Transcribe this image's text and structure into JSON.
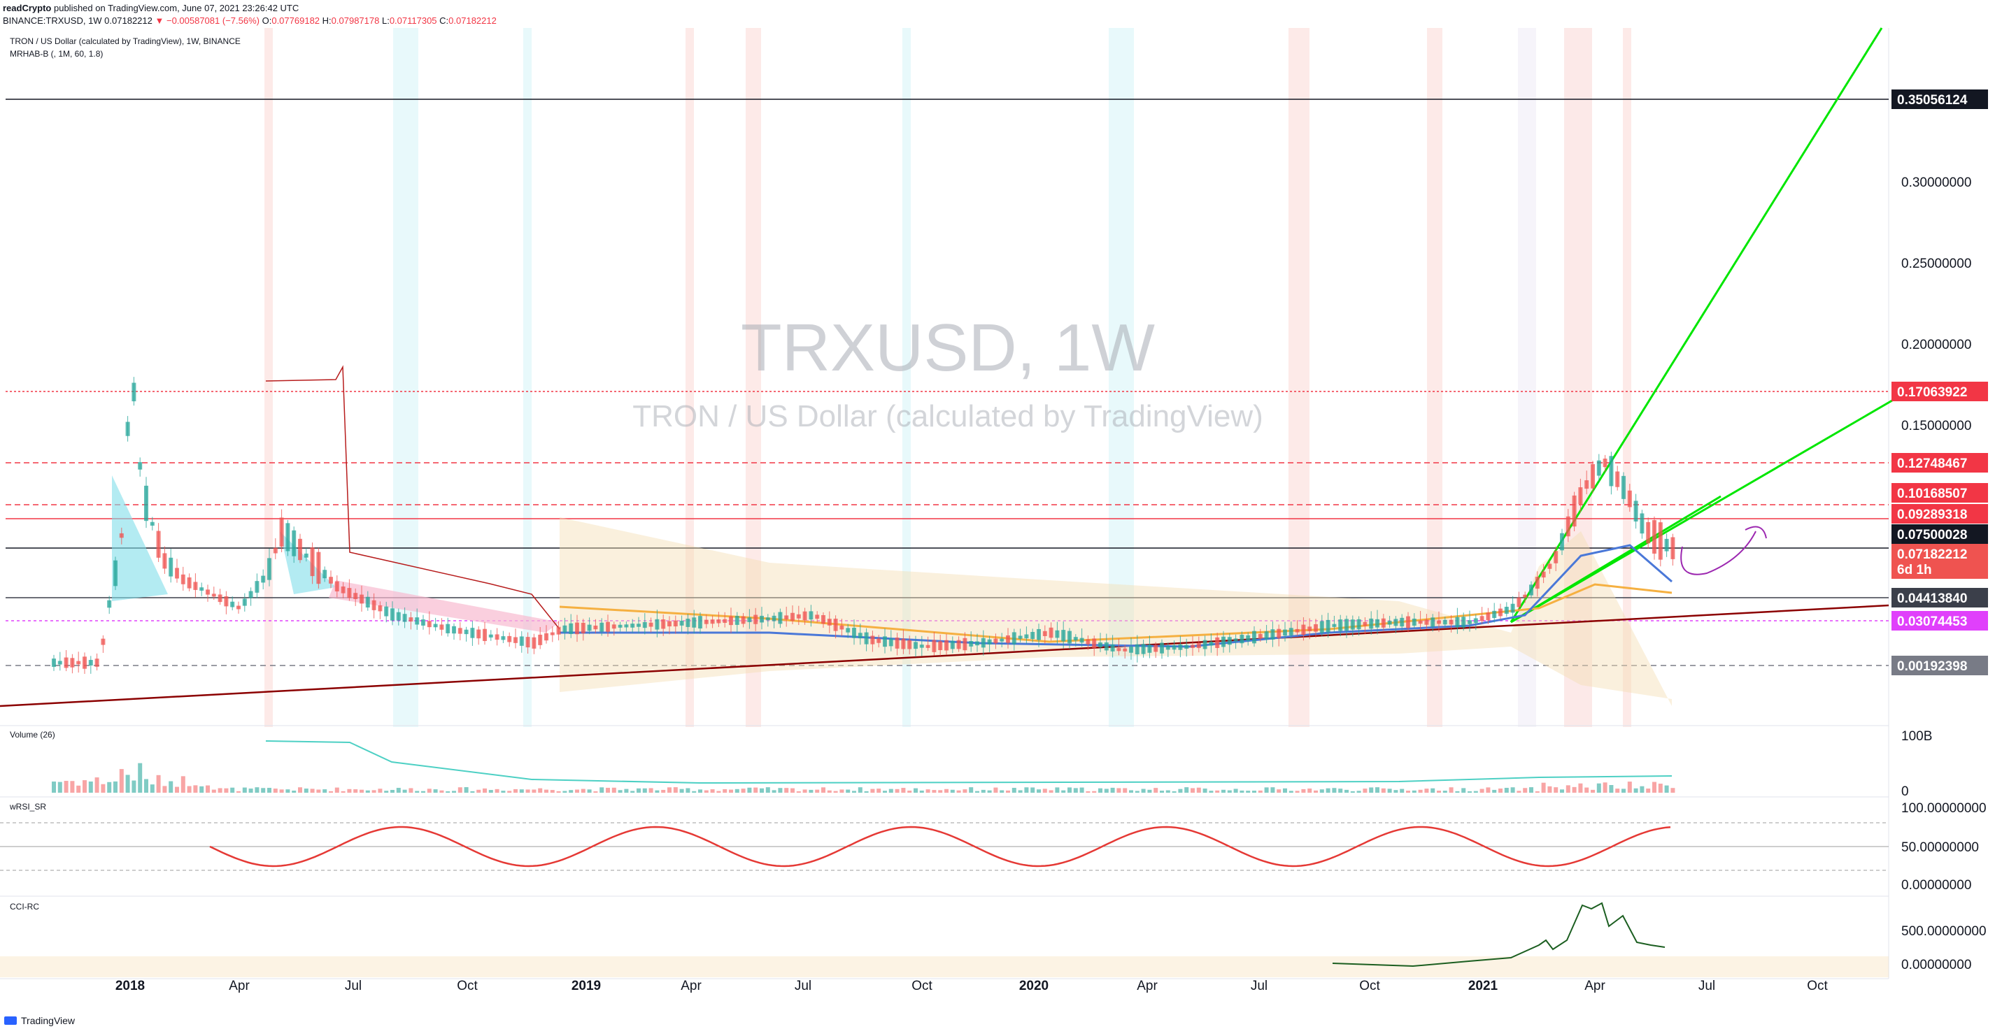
{
  "header": {
    "author": "readCrypto",
    "published_text": "published on TradingView.com, June 07, 2021 23:26:42 UTC",
    "symbol_line": "BINANCE:TRXUSD, 1W 0.07182212",
    "change_text": "▼ −0.00587081 (−7.56%)",
    "ohlc": {
      "o_label": "O:",
      "o": "0.07769182",
      "h_label": "H:",
      "h": "0.07987178",
      "l_label": "L:",
      "l": "0.07117305",
      "c_label": "C:",
      "c": "0.07182212"
    }
  },
  "main_pane": {
    "legend_title": "TRON / US Dollar (calculated by TradingView), 1W, BINANCE",
    "indicator_label": "MRHAB-B (, 1M, 60, 1.8)",
    "watermark_symbol": "TRXUSD, 1W",
    "watermark_name": "TRON / US Dollar (calculated by TradingView)",
    "axis_labels": [
      "0.30000000",
      "0.25000000",
      "0.20000000",
      "0.15000000"
    ],
    "price_tags": [
      {
        "text": "0.35056124",
        "color": "#131722"
      },
      {
        "text": "0.17063922",
        "color": "#f23645"
      },
      {
        "text": "0.12748467",
        "color": "#f23645"
      },
      {
        "text": "0.10168507",
        "color": "#f23645"
      },
      {
        "text": "0.09289318",
        "color": "#f23645"
      },
      {
        "text": "0.07500028",
        "color": "#131722"
      },
      {
        "text": "0.07182212",
        "color": "#ef5350"
      },
      {
        "text": "6d 1h",
        "color": "#ef5350"
      },
      {
        "text": "0.04413840",
        "color": "#3b3f4a"
      },
      {
        "text": "0.03074453",
        "color": "#e040fb"
      },
      {
        "text": "0.00192398",
        "color": "#787b86"
      }
    ]
  },
  "volume_pane": {
    "label": "Volume (26)",
    "axis_top": "100B",
    "axis_bottom": "0"
  },
  "wrsi_pane": {
    "label": "wRSI_SR",
    "axis_labels": [
      "100.00000000",
      "50.00000000",
      "0.00000000"
    ]
  },
  "cci_pane": {
    "label": "CCI-RC",
    "axis_labels": [
      "500.00000000",
      "0.00000000"
    ]
  },
  "time_axis": [
    "2018",
    "Apr",
    "Jul",
    "Oct",
    "2019",
    "Apr",
    "Jul",
    "Oct",
    "2020",
    "Apr",
    "Jul",
    "Oct",
    "2021",
    "Apr",
    "Jul",
    "Oct"
  ],
  "footer": {
    "brand": "TradingView"
  },
  "colors": {
    "up": "#26a69a",
    "down": "#ef5350",
    "trendline": "#00e600",
    "support": "#8b0000",
    "ma_blue": "#4a78d8",
    "ma_orange": "#f5b041"
  }
}
